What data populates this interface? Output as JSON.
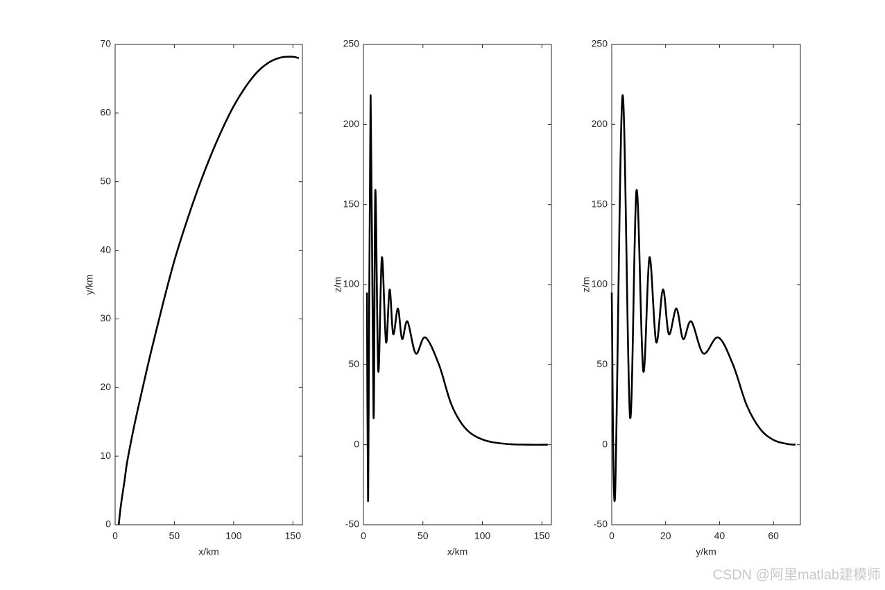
{
  "chart_data": [
    {
      "type": "line",
      "xlabel": "x/km",
      "ylabel": "y/km",
      "x": [
        3,
        5,
        8,
        10,
        15,
        20,
        30,
        40,
        50,
        60,
        70,
        80,
        90,
        100,
        110,
        120,
        130,
        140,
        150,
        155
      ],
      "series": [
        {
          "color": "#000000",
          "values": [
            0,
            3,
            6.5,
            9,
            13.5,
            17.5,
            25,
            32,
            38.5,
            44,
            49,
            53.5,
            57.5,
            61,
            63.8,
            66,
            67.4,
            68.1,
            68.2,
            68
          ]
        }
      ],
      "xlim": [
        0,
        158
      ],
      "ylim": [
        0,
        70
      ],
      "xticks": [
        0,
        50,
        100,
        150
      ],
      "yticks": [
        0,
        10,
        20,
        30,
        40,
        50,
        60,
        70
      ]
    },
    {
      "type": "line",
      "xlabel": "x/km",
      "ylabel": "z/m",
      "x": [
        3,
        4,
        6,
        8.5,
        10,
        12.5,
        15.5,
        19,
        22,
        25,
        29,
        32.5,
        37,
        44,
        52,
        63.5,
        74,
        86,
        101,
        120,
        140,
        155
      ],
      "series": [
        {
          "color": "#000000",
          "values": [
            95,
            -33,
            218,
            17,
            159,
            46,
            117,
            64,
            97,
            69,
            85,
            66,
            77,
            57,
            67,
            50,
            25,
            10,
            3,
            0.5,
            0,
            0
          ]
        }
      ],
      "xlim": [
        0,
        158
      ],
      "ylim": [
        -50,
        250
      ],
      "xticks": [
        0,
        50,
        100,
        150
      ],
      "yticks": [
        -50,
        0,
        50,
        100,
        150,
        200,
        250
      ]
    },
    {
      "type": "line",
      "xlabel": "y/km",
      "ylabel": "z/m",
      "x": [
        0,
        1.2,
        4,
        6.8,
        9.2,
        11.7,
        14,
        16.5,
        19,
        21.2,
        24,
        26.5,
        29.5,
        34,
        39.5,
        45,
        50,
        55,
        60,
        65,
        68.2
      ],
      "series": [
        {
          "color": "#000000",
          "values": [
            95,
            -33,
            218,
            17,
            159,
            46,
            117,
            64,
            97,
            69,
            85,
            66,
            77,
            57,
            67,
            50,
            25,
            10,
            3,
            0.5,
            0
          ]
        }
      ],
      "xlim": [
        0,
        70
      ],
      "ylim": [
        -50,
        250
      ],
      "xticks": [
        0,
        20,
        40,
        60
      ],
      "yticks": [
        -50,
        0,
        50,
        100,
        150,
        200,
        250
      ]
    }
  ],
  "watermark": "CSDN @阿里matlab建模师"
}
